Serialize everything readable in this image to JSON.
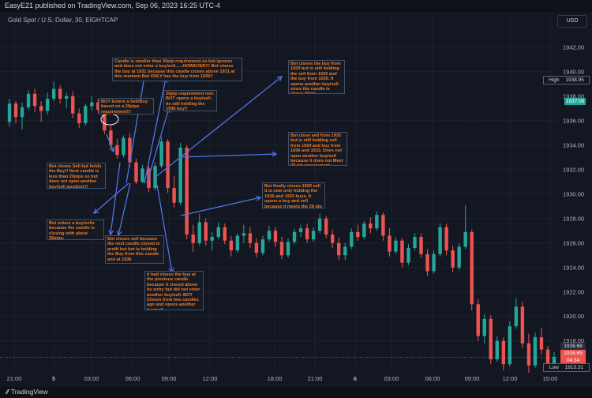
{
  "header": {
    "publisher_line": "EasyE21 published on TradingView.com, Sep 06, 2023 16:25 UTC-4",
    "symbol": "Gold Spot / U.S. Dollar, 30, EIGHTCAP",
    "currency": "USD"
  },
  "footer": {
    "logo": "TradingView"
  },
  "chart_data": {
    "type": "candlestick",
    "y_axis_labels": [
      "1942.00",
      "1940.00",
      "1938.00",
      "1936.00",
      "1934.00",
      "1932.00",
      "1930.00",
      "1928.00",
      "1926.00",
      "1924.00",
      "1922.00",
      "1920.00",
      "1918.00"
    ],
    "y_axis_values": [
      1942,
      1940,
      1938,
      1936,
      1934,
      1932,
      1930,
      1928,
      1926,
      1924,
      1922,
      1920,
      1918
    ],
    "ylim": [
      1915.4,
      1944.9
    ],
    "x_tick_labels": [
      "21:00",
      "5",
      "03:00",
      "06:00",
      "09:00",
      "12:00",
      "18:00",
      "21:00",
      "6",
      "03:00",
      "06:00",
      "09:00",
      "12:00",
      "15:00"
    ],
    "price_tags": {
      "high_label": "High",
      "high_value": "1938.95",
      "current_value": "1937.08",
      "last_value": "1916.68",
      "last_price": "1916.65",
      "countdown": "04:34",
      "low_label": "Low",
      "low_value": "1915.31"
    },
    "colors": {
      "up": "#26a69a",
      "down": "#ef5350",
      "arrow": "#4f74e8",
      "annotation_text": "#f07f2a"
    },
    "candles_ohlc": [
      [
        1935.9,
        1937.8,
        1935.5,
        1937.4
      ],
      [
        1937.4,
        1937.6,
        1935.8,
        1936.3
      ],
      [
        1936.3,
        1937.5,
        1935.3,
        1937.1
      ],
      [
        1937.1,
        1938.5,
        1936.9,
        1938.2
      ],
      [
        1938.2,
        1938.6,
        1936.7,
        1937.2
      ],
      [
        1937.2,
        1937.6,
        1935.9,
        1936.8
      ],
      [
        1936.8,
        1938.3,
        1936.5,
        1937.8
      ],
      [
        1937.8,
        1939.2,
        1937.6,
        1938.6
      ],
      [
        1938.6,
        1938.9,
        1937.4,
        1937.8
      ],
      [
        1937.8,
        1938.3,
        1937.0,
        1938.0
      ],
      [
        1938.0,
        1938.4,
        1936.2,
        1936.6
      ],
      [
        1936.6,
        1937.0,
        1935.4,
        1935.8
      ],
      [
        1935.8,
        1937.4,
        1935.6,
        1937.2
      ],
      [
        1937.2,
        1938.0,
        1936.8,
        1937.5
      ],
      [
        1937.5,
        1937.8,
        1936.6,
        1936.9
      ],
      [
        1936.9,
        1937.2,
        1934.9,
        1935.2
      ],
      [
        1935.2,
        1935.6,
        1933.6,
        1934.0
      ],
      [
        1934.0,
        1934.5,
        1932.9,
        1933.2
      ],
      [
        1933.2,
        1934.8,
        1933.0,
        1934.6
      ],
      [
        1934.6,
        1935.0,
        1932.2,
        1932.6
      ],
      [
        1932.6,
        1932.9,
        1930.8,
        1931.0
      ],
      [
        1931.0,
        1932.4,
        1930.9,
        1932.1
      ],
      [
        1932.1,
        1932.3,
        1930.2,
        1930.5
      ],
      [
        1930.5,
        1932.6,
        1930.3,
        1932.3
      ],
      [
        1932.3,
        1934.7,
        1932.1,
        1934.3
      ],
      [
        1934.3,
        1934.5,
        1930.1,
        1930.5
      ],
      [
        1930.5,
        1931.5,
        1928.9,
        1929.3
      ],
      [
        1929.3,
        1934.2,
        1929.1,
        1933.8
      ],
      [
        1933.8,
        1934.0,
        1926.3,
        1926.7
      ],
      [
        1926.7,
        1927.5,
        1925.3,
        1926.0
      ],
      [
        1926.0,
        1928.4,
        1925.8,
        1927.7
      ],
      [
        1927.7,
        1928.0,
        1925.8,
        1926.2
      ],
      [
        1926.2,
        1926.9,
        1925.4,
        1926.5
      ],
      [
        1926.5,
        1927.7,
        1926.3,
        1927.3
      ],
      [
        1927.3,
        1927.6,
        1925.9,
        1926.2
      ],
      [
        1926.2,
        1926.6,
        1924.9,
        1925.4
      ],
      [
        1925.4,
        1926.8,
        1925.2,
        1926.6
      ],
      [
        1926.6,
        1927.5,
        1926.0,
        1926.8
      ],
      [
        1926.8,
        1927.3,
        1925.6,
        1926.0
      ],
      [
        1926.0,
        1926.4,
        1924.8,
        1925.2
      ],
      [
        1925.2,
        1926.6,
        1925.0,
        1926.3
      ],
      [
        1926.3,
        1927.4,
        1926.1,
        1927.0
      ],
      [
        1927.0,
        1927.3,
        1925.7,
        1926.1
      ],
      [
        1926.1,
        1926.5,
        1924.7,
        1925.0
      ],
      [
        1925.0,
        1926.4,
        1924.8,
        1926.1
      ],
      [
        1926.1,
        1927.2,
        1925.9,
        1926.9
      ],
      [
        1926.9,
        1927.5,
        1926.5,
        1927.2
      ],
      [
        1927.2,
        1927.6,
        1926.0,
        1926.3
      ],
      [
        1926.3,
        1927.3,
        1926.1,
        1927.0
      ],
      [
        1927.0,
        1928.4,
        1926.8,
        1928.0
      ],
      [
        1928.0,
        1928.2,
        1926.4,
        1926.7
      ],
      [
        1926.7,
        1927.1,
        1925.6,
        1926.0
      ],
      [
        1926.0,
        1926.5,
        1924.6,
        1925.0
      ],
      [
        1925.0,
        1926.0,
        1924.6,
        1925.7
      ],
      [
        1925.7,
        1927.2,
        1925.5,
        1926.9
      ],
      [
        1926.9,
        1927.5,
        1926.2,
        1926.5
      ],
      [
        1926.5,
        1927.8,
        1926.3,
        1927.6
      ],
      [
        1927.6,
        1928.1,
        1926.8,
        1927.2
      ],
      [
        1927.2,
        1928.6,
        1927.0,
        1928.3
      ],
      [
        1928.3,
        1928.5,
        1926.2,
        1926.6
      ],
      [
        1926.6,
        1927.2,
        1924.9,
        1925.3
      ],
      [
        1925.3,
        1926.5,
        1925.1,
        1926.2
      ],
      [
        1926.2,
        1926.4,
        1924.0,
        1924.4
      ],
      [
        1924.4,
        1925.9,
        1924.2,
        1925.6
      ],
      [
        1925.6,
        1926.8,
        1925.4,
        1926.5
      ],
      [
        1926.5,
        1926.8,
        1924.8,
        1925.1
      ],
      [
        1925.1,
        1925.5,
        1923.3,
        1923.7
      ],
      [
        1923.7,
        1925.4,
        1923.5,
        1925.1
      ],
      [
        1925.1,
        1927.6,
        1924.9,
        1927.3
      ],
      [
        1927.3,
        1927.6,
        1925.0,
        1925.4
      ],
      [
        1925.4,
        1925.8,
        1923.6,
        1924.0
      ],
      [
        1924.0,
        1926.0,
        1923.8,
        1925.7
      ],
      [
        1925.7,
        1929.1,
        1925.5,
        1926.9
      ],
      [
        1926.9,
        1927.1,
        1920.5,
        1921.0
      ],
      [
        1921.0,
        1921.4,
        1918.0,
        1918.4
      ],
      [
        1918.4,
        1920.2,
        1917.8,
        1919.8
      ],
      [
        1919.8,
        1920.1,
        1916.1,
        1916.5
      ],
      [
        1916.5,
        1918.4,
        1916.3,
        1918.0
      ],
      [
        1918.0,
        1918.3,
        1915.6,
        1916.1
      ],
      [
        1916.1,
        1919.6,
        1915.9,
        1919.2
      ],
      [
        1919.2,
        1921.5,
        1919.0,
        1920.8
      ],
      [
        1920.8,
        1921.2,
        1917.4,
        1917.8
      ],
      [
        1917.8,
        1918.6,
        1915.4,
        1916.0
      ],
      [
        1916.0,
        1918.7,
        1915.8,
        1918.3
      ],
      [
        1918.3,
        1919.1,
        1916.9,
        1917.3
      ],
      [
        1917.3,
        1917.6,
        1915.6,
        1916.0
      ],
      [
        1916.0,
        1917.1,
        1915.8,
        1916.7
      ]
    ],
    "annotations": [
      "Candle is smaller than 20pip requirement so bot ignores and does not enter a buy/sell......HOWEVER!!! Bot closes the buy at 1931 because this candle closes above 1931 at this moment Bot ONLY has the buy from 1936!!",
      "Bot closes the buy from 1929 but is still holding the sell from 1929 and the buy from 1935. It opens another buy/sell since the candle is above 20pip requirement.",
      "BOT Enters a Sell/Buy based on a 20pips requirement!!!",
      "20pip requirement met. BOT opens a buy/sell , its still holding the 1936 buy!!",
      "Bot close sell from 1933 but is still holding sell from 1929 and buy from 1936 and 1933. Does not open another buy/sell because it does not Meet 20 pip requirement.",
      "Bot closes Sell but holds the Buy!! Next candle is less than 20pips so bot does not open another buy/sell position!!!",
      "Bot finally closes 1929 sell it is now only holding the 1936 and 1933 buys. It opens a buy and sell because it meets the 20 pip requirement",
      "Bot enters a buy/sells because the candle is closing with about 30pips.",
      "Bot closes sell because the next candle closed in profit but bot is holding the Buy from this candle and at 1936",
      "it had closes the buy at the previous candle because it closed above its entry but did not enter another buy/sell. BOT Closes from two candles ago and opens another buy/sell"
    ]
  }
}
